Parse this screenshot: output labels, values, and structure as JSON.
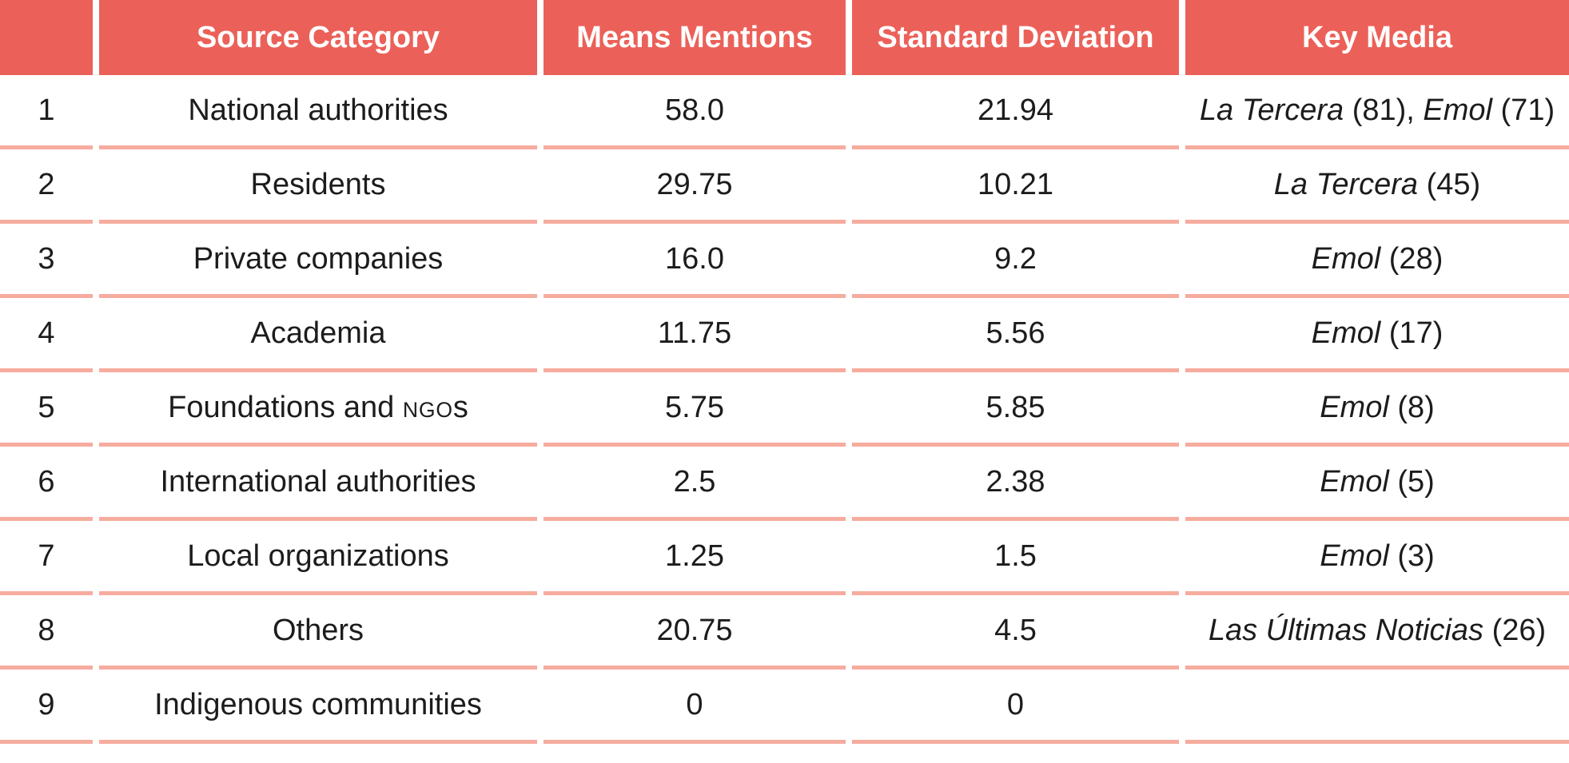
{
  "table": {
    "colors": {
      "header_bg": "#EB6159",
      "header_text": "#FFFFFF",
      "divider": "#F6AC9E",
      "body_text": "#1C1C1C",
      "page_bg": "#FFFFFF"
    },
    "columns": [
      {
        "id": "index",
        "label": ""
      },
      {
        "id": "source_category",
        "label": "Source Category"
      },
      {
        "id": "means_mentions",
        "label": "Means Mentions"
      },
      {
        "id": "standard_deviation",
        "label": "Standard Deviation"
      },
      {
        "id": "key_media",
        "label": "Key Media"
      }
    ],
    "rows": [
      {
        "index": "1",
        "category": [
          {
            "text": "National authorities"
          }
        ],
        "mean": "58.0",
        "sd": "21.94",
        "key_media": [
          {
            "text": "La Tercera",
            "italic": true
          },
          {
            "text": " (81), "
          },
          {
            "text": "Emol",
            "italic": true
          },
          {
            "text": " (71)"
          }
        ]
      },
      {
        "index": "2",
        "category": [
          {
            "text": "Residents"
          }
        ],
        "mean": "29.75",
        "sd": "10.21",
        "key_media": [
          {
            "text": "La Tercera",
            "italic": true
          },
          {
            "text": " (45)"
          }
        ]
      },
      {
        "index": "3",
        "category": [
          {
            "text": "Private companies"
          }
        ],
        "mean": "16.0",
        "sd": "9.2",
        "key_media": [
          {
            "text": "Emol",
            "italic": true
          },
          {
            "text": " (28)"
          }
        ]
      },
      {
        "index": "4",
        "category": [
          {
            "text": "Academia"
          }
        ],
        "mean": "11.75",
        "sd": "5.56",
        "key_media": [
          {
            "text": "Emol",
            "italic": true
          },
          {
            "text": " (17)"
          }
        ]
      },
      {
        "index": "5",
        "category": [
          {
            "text": "Foundations and "
          },
          {
            "text": "NGO",
            "smallcaps": true
          },
          {
            "text": "s"
          }
        ],
        "mean": "5.75",
        "sd": "5.85",
        "key_media": [
          {
            "text": "Emol",
            "italic": true
          },
          {
            "text": " (8)"
          }
        ]
      },
      {
        "index": "6",
        "category": [
          {
            "text": "International authorities"
          }
        ],
        "mean": "2.5",
        "sd": "2.38",
        "key_media": [
          {
            "text": "Emol",
            "italic": true
          },
          {
            "text": " (5)"
          }
        ]
      },
      {
        "index": "7",
        "category": [
          {
            "text": "Local organizations"
          }
        ],
        "mean": "1.25",
        "sd": "1.5",
        "key_media": [
          {
            "text": "Emol",
            "italic": true
          },
          {
            "text": " (3)"
          }
        ]
      },
      {
        "index": "8",
        "category": [
          {
            "text": "Others"
          }
        ],
        "mean": "20.75",
        "sd": "4.5",
        "key_media": [
          {
            "text": "Las Últimas Noticias",
            "italic": true
          },
          {
            "text": " (26)"
          }
        ]
      },
      {
        "index": "9",
        "category": [
          {
            "text": "Indigenous communities"
          }
        ],
        "mean": "0",
        "sd": "0",
        "key_media": []
      }
    ]
  },
  "chart_data": {
    "type": "table",
    "title": "",
    "columns": [
      "",
      "Source Category",
      "Means Mentions",
      "Standard Deviation",
      "Key Media"
    ],
    "rows": [
      [
        "1",
        "National authorities",
        "58.0",
        "21.94",
        "La Tercera (81), Emol (71)"
      ],
      [
        "2",
        "Residents",
        "29.75",
        "10.21",
        "La Tercera (45)"
      ],
      [
        "3",
        "Private companies",
        "16.0",
        "9.2",
        "Emol (28)"
      ],
      [
        "4",
        "Academia",
        "11.75",
        "5.56",
        "Emol (17)"
      ],
      [
        "5",
        "Foundations and NGOs",
        "5.75",
        "5.85",
        "Emol (8)"
      ],
      [
        "6",
        "International authorities",
        "2.5",
        "2.38",
        "Emol (5)"
      ],
      [
        "7",
        "Local organizations",
        "1.25",
        "1.5",
        "Emol (3)"
      ],
      [
        "8",
        "Others",
        "20.75",
        "4.5",
        "Las Últimas Noticias (26)"
      ],
      [
        "9",
        "Indigenous communities",
        "0",
        "0",
        ""
      ]
    ]
  }
}
